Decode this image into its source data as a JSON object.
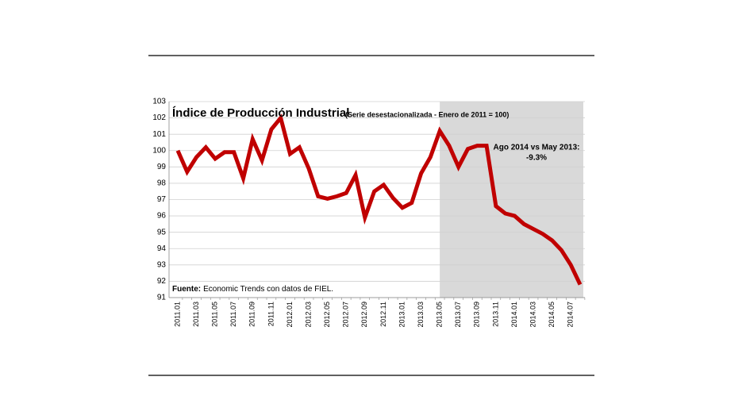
{
  "chart_data": {
    "type": "line",
    "title": "Índice de Producción Industrial",
    "subtitle": "(Serie desestacionalizada - Enero de 2011 = 100)",
    "annotation": [
      "Ago 2014 vs May 2013:",
      "-9.3%"
    ],
    "source_label": "Fuente:",
    "source_text": "Economic Trends con datos de FIEL.",
    "categories": [
      "2011.01",
      null,
      "2011.03",
      null,
      "2011.05",
      null,
      "2011.07",
      null,
      "2011.09",
      null,
      "2011.11",
      null,
      "2012.01",
      null,
      "2012.03",
      null,
      "2012.05",
      null,
      "2012.07",
      null,
      "2012.09",
      null,
      "2012.11",
      null,
      "2013.01",
      null,
      "2013.03",
      null,
      "2013.05",
      null,
      "2013.07",
      null,
      "2013.09",
      null,
      "2013.11",
      null,
      "2014.01",
      null,
      "2014.03",
      null,
      "2014.05",
      null,
      "2014.07",
      null
    ],
    "series": [
      {
        "name": "Índice de Producción Industrial",
        "color": "#c00000",
        "values": [
          100.0,
          98.7,
          99.6,
          100.2,
          99.5,
          99.9,
          99.9,
          98.3,
          100.7,
          99.4,
          101.3,
          102.0,
          99.8,
          100.2,
          98.9,
          97.2,
          97.05,
          97.2,
          97.4,
          98.5,
          95.9,
          97.5,
          97.9,
          97.1,
          96.5,
          96.8,
          98.6,
          99.6,
          101.2,
          100.3,
          99.0,
          100.1,
          100.3,
          100.3,
          96.6,
          96.15,
          96.0,
          95.5,
          95.2,
          94.9,
          94.5,
          93.9,
          93.0,
          91.8
        ]
      }
    ],
    "ylim": [
      91,
      103
    ],
    "yticks": [
      91,
      92,
      93,
      94,
      95,
      96,
      97,
      98,
      99,
      100,
      101,
      102,
      103
    ],
    "grid": true,
    "highlight_from": "2013.05",
    "highlight_color": "#d9d9d9"
  }
}
